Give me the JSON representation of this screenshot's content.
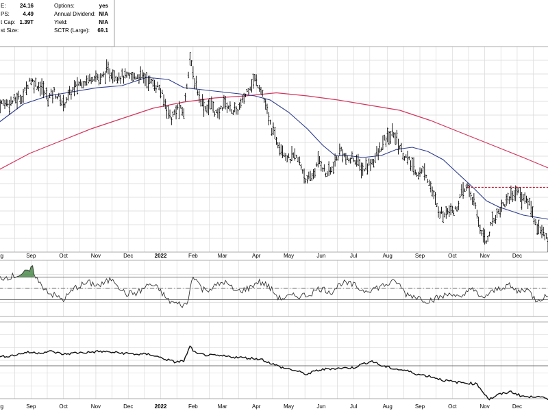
{
  "stats": {
    "left": [
      {
        "label": "E:",
        "value": "24.16"
      },
      {
        "label": "PS:",
        "value": "4.49"
      },
      {
        "label": "t Cap:",
        "value": "1.39T"
      },
      {
        "label": "st Size:",
        "value": ""
      }
    ],
    "right": [
      {
        "label": "Options:",
        "value": "yes"
      },
      {
        "label": "Annual Dividend:",
        "value": "N/A"
      },
      {
        "label": "Yield:",
        "value": "N/A"
      },
      {
        "label": "SCTR (Large):",
        "value": "69.1"
      }
    ]
  },
  "colors": {
    "price": "#000000",
    "ma50": "#2b3a8c",
    "ma200": "#d4335c",
    "resistance": "#c0102a",
    "grid": "#d9d9d9",
    "overbought": "#4a8a4a"
  },
  "chart_data": [
    {
      "type": "line",
      "panel": "price",
      "x_tick_labels": [
        "Aug",
        "Sep",
        "Oct",
        "Nov",
        "Dec",
        "2022",
        "Feb",
        "Mar",
        "Apr",
        "May",
        "Jun",
        "Jul",
        "Aug",
        "Sep",
        "Oct",
        "Nov",
        "Dec"
      ],
      "x_tick_index": [
        0,
        21,
        42,
        63,
        84,
        105,
        126,
        145,
        167,
        188,
        209,
        230,
        252,
        273,
        294,
        315,
        336
      ],
      "series": [
        {
          "key": "price",
          "points": [
            [
              0,
              0.72
            ],
            [
              8,
              0.73
            ],
            [
              16,
              0.76
            ],
            [
              20,
              0.84
            ],
            [
              24,
              0.82
            ],
            [
              28,
              0.8
            ],
            [
              32,
              0.75
            ],
            [
              36,
              0.78
            ],
            [
              42,
              0.72
            ],
            [
              46,
              0.77
            ],
            [
              52,
              0.82
            ],
            [
              58,
              0.84
            ],
            [
              62,
              0.86
            ],
            [
              66,
              0.84
            ],
            [
              70,
              0.88
            ],
            [
              76,
              0.86
            ],
            [
              84,
              0.85
            ],
            [
              92,
              0.86
            ],
            [
              100,
              0.82
            ],
            [
              104,
              0.8
            ],
            [
              108,
              0.72
            ],
            [
              112,
              0.65
            ],
            [
              116,
              0.7
            ],
            [
              120,
              0.68
            ],
            [
              124,
              0.95
            ],
            [
              126,
              0.86
            ],
            [
              130,
              0.76
            ],
            [
              134,
              0.7
            ],
            [
              138,
              0.72
            ],
            [
              142,
              0.66
            ],
            [
              146,
              0.73
            ],
            [
              150,
              0.7
            ],
            [
              154,
              0.68
            ],
            [
              158,
              0.73
            ],
            [
              162,
              0.8
            ],
            [
              166,
              0.84
            ],
            [
              170,
              0.8
            ],
            [
              172,
              0.74
            ],
            [
              176,
              0.62
            ],
            [
              180,
              0.55
            ],
            [
              184,
              0.5
            ],
            [
              188,
              0.45
            ],
            [
              192,
              0.47
            ],
            [
              196,
              0.42
            ],
            [
              200,
              0.34
            ],
            [
              204,
              0.38
            ],
            [
              208,
              0.45
            ],
            [
              212,
              0.38
            ],
            [
              216,
              0.4
            ],
            [
              222,
              0.5
            ],
            [
              226,
              0.44
            ],
            [
              230,
              0.46
            ],
            [
              236,
              0.4
            ],
            [
              242,
              0.44
            ],
            [
              246,
              0.48
            ],
            [
              250,
              0.54
            ],
            [
              256,
              0.58
            ],
            [
              262,
              0.48
            ],
            [
              266,
              0.44
            ],
            [
              272,
              0.38
            ],
            [
              276,
              0.4
            ],
            [
              280,
              0.32
            ],
            [
              284,
              0.22
            ],
            [
              288,
              0.18
            ],
            [
              292,
              0.22
            ],
            [
              296,
              0.2
            ],
            [
              300,
              0.28
            ],
            [
              304,
              0.32
            ],
            [
              308,
              0.24
            ],
            [
              312,
              0.12
            ],
            [
              316,
              0.05
            ],
            [
              320,
              0.15
            ],
            [
              324,
              0.2
            ],
            [
              330,
              0.26
            ],
            [
              336,
              0.3
            ],
            [
              340,
              0.26
            ],
            [
              344,
              0.24
            ],
            [
              348,
              0.14
            ],
            [
              352,
              0.1
            ],
            [
              356,
              0.05
            ]
          ]
        },
        {
          "key": "ma50",
          "points": [
            [
              0,
              0.63
            ],
            [
              16,
              0.72
            ],
            [
              32,
              0.76
            ],
            [
              48,
              0.78
            ],
            [
              64,
              0.8
            ],
            [
              80,
              0.81
            ],
            [
              96,
              0.85
            ],
            [
              110,
              0.84
            ],
            [
              120,
              0.8
            ],
            [
              132,
              0.79
            ],
            [
              144,
              0.78
            ],
            [
              156,
              0.77
            ],
            [
              166,
              0.76
            ],
            [
              176,
              0.74
            ],
            [
              188,
              0.68
            ],
            [
              200,
              0.6
            ],
            [
              210,
              0.52
            ],
            [
              218,
              0.47
            ],
            [
              226,
              0.47
            ],
            [
              236,
              0.46
            ],
            [
              248,
              0.47
            ],
            [
              258,
              0.5
            ],
            [
              268,
              0.51
            ],
            [
              278,
              0.49
            ],
            [
              288,
              0.45
            ],
            [
              298,
              0.38
            ],
            [
              308,
              0.31
            ],
            [
              316,
              0.25
            ],
            [
              324,
              0.22
            ],
            [
              332,
              0.2
            ],
            [
              340,
              0.18
            ],
            [
              348,
              0.17
            ],
            [
              356,
              0.16
            ]
          ]
        },
        {
          "key": "ma200",
          "points": [
            [
              0,
              0.4
            ],
            [
              20,
              0.48
            ],
            [
              40,
              0.54
            ],
            [
              60,
              0.6
            ],
            [
              80,
              0.65
            ],
            [
              100,
              0.7
            ],
            [
              120,
              0.73
            ],
            [
              140,
              0.75
            ],
            [
              160,
              0.76
            ],
            [
              180,
              0.775
            ],
            [
              200,
              0.76
            ],
            [
              220,
              0.74
            ],
            [
              240,
              0.715
            ],
            [
              260,
              0.69
            ],
            [
              280,
              0.64
            ],
            [
              300,
              0.58
            ],
            [
              320,
              0.52
            ],
            [
              340,
              0.46
            ],
            [
              356,
              0.41
            ]
          ]
        }
      ],
      "resistance": {
        "from": 304,
        "to": 356,
        "level": 0.315
      }
    },
    {
      "type": "line",
      "panel": "oscillator",
      "series": [
        {
          "key": "rsi",
          "points": [
            [
              0,
              0.68
            ],
            [
              10,
              0.72
            ],
            [
              18,
              0.78
            ],
            [
              22,
              0.85
            ],
            [
              26,
              0.6
            ],
            [
              34,
              0.4
            ],
            [
              42,
              0.3
            ],
            [
              50,
              0.52
            ],
            [
              58,
              0.6
            ],
            [
              66,
              0.55
            ],
            [
              74,
              0.68
            ],
            [
              82,
              0.4
            ],
            [
              90,
              0.42
            ],
            [
              98,
              0.58
            ],
            [
              104,
              0.48
            ],
            [
              110,
              0.28
            ],
            [
              116,
              0.22
            ],
            [
              122,
              0.2
            ],
            [
              126,
              0.75
            ],
            [
              132,
              0.48
            ],
            [
              138,
              0.5
            ],
            [
              146,
              0.62
            ],
            [
              154,
              0.44
            ],
            [
              162,
              0.5
            ],
            [
              168,
              0.62
            ],
            [
              174,
              0.56
            ],
            [
              182,
              0.32
            ],
            [
              190,
              0.36
            ],
            [
              200,
              0.38
            ],
            [
              208,
              0.5
            ],
            [
              216,
              0.44
            ],
            [
              222,
              0.6
            ],
            [
              230,
              0.56
            ],
            [
              236,
              0.46
            ],
            [
              244,
              0.5
            ],
            [
              252,
              0.58
            ],
            [
              258,
              0.62
            ],
            [
              264,
              0.4
            ],
            [
              270,
              0.36
            ],
            [
              278,
              0.28
            ],
            [
              286,
              0.34
            ],
            [
              294,
              0.42
            ],
            [
              300,
              0.3
            ],
            [
              306,
              0.54
            ],
            [
              312,
              0.32
            ],
            [
              318,
              0.4
            ],
            [
              324,
              0.5
            ],
            [
              330,
              0.56
            ],
            [
              336,
              0.44
            ],
            [
              342,
              0.5
            ],
            [
              348,
              0.3
            ],
            [
              356,
              0.36
            ]
          ]
        }
      ],
      "reference_lines": [
        0.7,
        0.5,
        0.3
      ]
    },
    {
      "type": "line",
      "panel": "relative",
      "series": [
        {
          "key": "rel",
          "points": [
            [
              0,
              0.18
            ],
            [
              10,
              0.22
            ],
            [
              18,
              0.28
            ],
            [
              26,
              0.27
            ],
            [
              34,
              0.3
            ],
            [
              42,
              0.24
            ],
            [
              50,
              0.27
            ],
            [
              58,
              0.28
            ],
            [
              66,
              0.3
            ],
            [
              74,
              0.28
            ],
            [
              82,
              0.26
            ],
            [
              90,
              0.24
            ],
            [
              98,
              0.24
            ],
            [
              106,
              0.16
            ],
            [
              114,
              0.08
            ],
            [
              120,
              0.1
            ],
            [
              124,
              0.4
            ],
            [
              128,
              0.25
            ],
            [
              136,
              0.22
            ],
            [
              146,
              0.2
            ],
            [
              154,
              0.18
            ],
            [
              162,
              0.16
            ],
            [
              170,
              0.14
            ],
            [
              178,
              0.03
            ],
            [
              184,
              -0.04
            ],
            [
              190,
              -0.08
            ],
            [
              200,
              -0.18
            ],
            [
              206,
              -0.1
            ],
            [
              214,
              -0.06
            ],
            [
              222,
              -0.05
            ],
            [
              230,
              -0.04
            ],
            [
              236,
              0.04
            ],
            [
              242,
              0.1
            ],
            [
              248,
              0.0
            ],
            [
              256,
              -0.06
            ],
            [
              264,
              -0.1
            ],
            [
              272,
              -0.18
            ],
            [
              280,
              -0.22
            ],
            [
              288,
              -0.3
            ],
            [
              296,
              -0.34
            ],
            [
              304,
              -0.36
            ],
            [
              310,
              -0.38
            ],
            [
              314,
              -0.55
            ],
            [
              318,
              -0.7
            ],
            [
              324,
              -0.6
            ],
            [
              332,
              -0.54
            ],
            [
              338,
              -0.62
            ],
            [
              344,
              -0.66
            ],
            [
              350,
              -0.62
            ],
            [
              356,
              -0.72
            ]
          ]
        }
      ],
      "reference_lines": [
        0.0
      ]
    }
  ]
}
